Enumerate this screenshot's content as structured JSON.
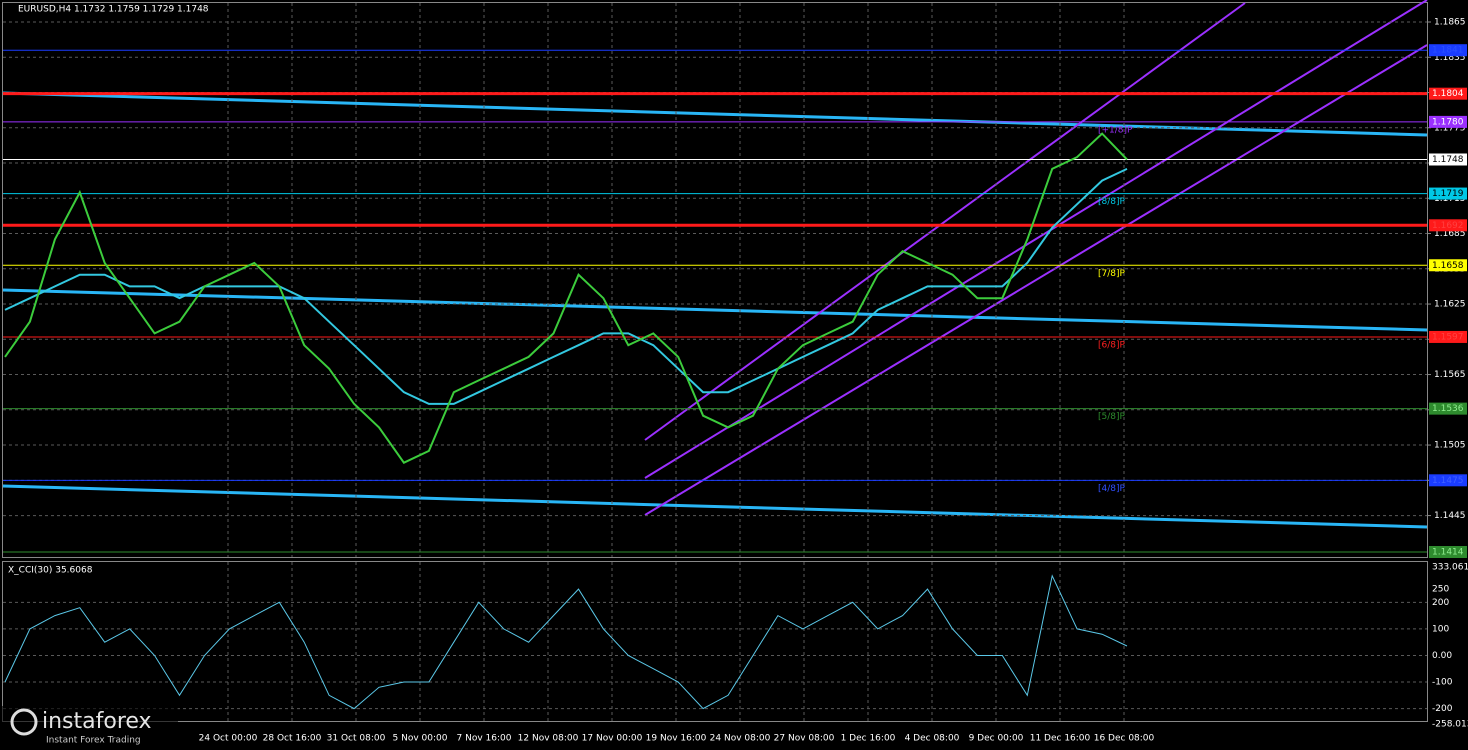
{
  "header": {
    "title": "EURUSD,H4  1.1732 1.1759 1.1729 1.1748"
  },
  "price_panel": {
    "ylim": [
      1.1414,
      1.1865
    ],
    "yticks": [
      1.1865,
      1.1835,
      1.1805,
      1.1775,
      1.1745,
      1.1715,
      1.1685,
      1.1655,
      1.1625,
      1.1595,
      1.1565,
      1.1535,
      1.1505,
      1.1475,
      1.1445
    ],
    "levels": [
      {
        "value": 1.1841,
        "label": "1.1841",
        "color": "#1a3cff",
        "text_color": "#2a50ff"
      },
      {
        "value": 1.1804,
        "label": "1.1804",
        "color": "#ff1a1a",
        "text_color": "#ffffff"
      },
      {
        "value": 1.178,
        "label": "1.1780",
        "color": "#9b30ff",
        "text_color": "#ffffff"
      },
      {
        "value": 1.1748,
        "label": "1.1748",
        "color": "#ffffff",
        "text_color": "#000000"
      },
      {
        "value": 1.1719,
        "label": "1.1719",
        "color": "#00c8e6",
        "text_color": "#000000"
      },
      {
        "value": 1.1692,
        "label": "1.1692",
        "color": "#ff1a1a",
        "text_color": "#ff4040"
      },
      {
        "value": 1.1658,
        "label": "1.1658",
        "color": "#ffff00",
        "text_color": "#000000"
      },
      {
        "value": 1.1597,
        "label": "1.1597",
        "color": "#ff1a1a",
        "text_color": "#ff4040"
      },
      {
        "value": 1.1536,
        "label": "1.1536",
        "color": "#2e8b2e",
        "text_color": "#90ee90"
      },
      {
        "value": 1.1475,
        "label": "1.1475",
        "color": "#1a3cff",
        "text_color": "#4060ff"
      },
      {
        "value": 1.1414,
        "label": "1.1414",
        "color": "#2e8b2e",
        "text_color": "#90ee90"
      }
    ],
    "murray": [
      {
        "value": 1.178,
        "label": "[+1/8]P",
        "color": "#9b30ff"
      },
      {
        "value": 1.1719,
        "label": "[8/8]P",
        "color": "#00c8e6"
      },
      {
        "value": 1.1658,
        "label": "[7/8]P",
        "color": "#ffff00"
      },
      {
        "value": 1.1597,
        "label": "[6/8]P",
        "color": "#ff2020"
      },
      {
        "value": 1.1536,
        "label": "[5/8]P",
        "color": "#2e8b2e"
      },
      {
        "value": 1.1475,
        "label": "[4/8]P",
        "color": "#3050ff"
      }
    ],
    "close": [
      1.158,
      1.161,
      1.168,
      1.172,
      1.166,
      1.163,
      1.16,
      1.161,
      1.164,
      1.165,
      1.166,
      1.164,
      1.159,
      1.157,
      1.154,
      1.152,
      1.149,
      1.15,
      1.155,
      1.156,
      1.157,
      1.158,
      1.16,
      1.165,
      1.163,
      1.159,
      1.16,
      1.158,
      1.153,
      1.152,
      1.153,
      1.157,
      1.159,
      1.16,
      1.161,
      1.165,
      1.167,
      1.166,
      1.165,
      1.163,
      1.163,
      1.168,
      1.174,
      1.175,
      1.177,
      1.1748
    ],
    "ma": [
      1.162,
      1.163,
      1.164,
      1.165,
      1.165,
      1.164,
      1.164,
      1.163,
      1.164,
      1.164,
      1.164,
      1.164,
      1.163,
      1.161,
      1.159,
      1.157,
      1.155,
      1.154,
      1.154,
      1.155,
      1.156,
      1.157,
      1.158,
      1.159,
      1.16,
      1.16,
      1.159,
      1.157,
      1.155,
      1.155,
      1.156,
      1.157,
      1.158,
      1.159,
      1.16,
      1.162,
      1.163,
      1.164,
      1.164,
      1.164,
      1.164,
      1.166,
      1.169,
      1.171,
      1.173,
      1.174
    ]
  },
  "cci_panel": {
    "title": "X_CCI(30) 35.6068",
    "ylim": [
      -258.013,
      333.061
    ],
    "yticks": [
      {
        "value": 333.061,
        "label": "333.061"
      },
      250,
      200,
      100,
      {
        "value": 0,
        "label": "0.00"
      },
      -100,
      -200,
      {
        "value": -258.013,
        "label": "-258.013"
      }
    ],
    "values": [
      -100,
      100,
      150,
      180,
      50,
      100,
      0,
      -150,
      0,
      100,
      150,
      200,
      50,
      -150,
      -200,
      -120,
      -100,
      -100,
      50,
      200,
      100,
      50,
      150,
      250,
      100,
      0,
      -50,
      -100,
      -200,
      -150,
      0,
      150,
      100,
      150,
      200,
      100,
      150,
      250,
      100,
      0,
      0,
      -150,
      300,
      100,
      80,
      35.6068
    ]
  },
  "dates": [
    "24 Oct 00:00",
    "28 Oct 16:00",
    "31 Oct 08:00",
    "5 Nov 00:00",
    "7 Nov 16:00",
    "12 Nov 08:00",
    "17 Nov 00:00",
    "19 Nov 16:00",
    "24 Nov 08:00",
    "27 Nov 08:00",
    "1 Dec 16:00",
    "4 Dec 08:00",
    "9 Dec 00:00",
    "11 Dec 16:00",
    "16 Dec 08:00"
  ],
  "logo": {
    "name": "instaforex",
    "tagline": "Instant Forex Trading"
  }
}
